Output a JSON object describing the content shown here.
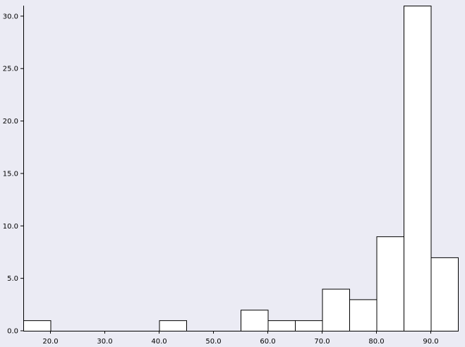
{
  "chart_data": {
    "type": "bar",
    "title": "",
    "xlabel": "",
    "ylabel": "",
    "xlim": [
      15,
      95
    ],
    "ylim": [
      0,
      31
    ],
    "grid": false,
    "bin_width": 5,
    "bins": [
      {
        "x0": 15,
        "x1": 20,
        "count": 1
      },
      {
        "x0": 20,
        "x1": 25,
        "count": 0
      },
      {
        "x0": 25,
        "x1": 30,
        "count": 0
      },
      {
        "x0": 30,
        "x1": 35,
        "count": 0
      },
      {
        "x0": 35,
        "x1": 40,
        "count": 0
      },
      {
        "x0": 40,
        "x1": 45,
        "count": 1
      },
      {
        "x0": 45,
        "x1": 50,
        "count": 0
      },
      {
        "x0": 50,
        "x1": 55,
        "count": 0
      },
      {
        "x0": 55,
        "x1": 60,
        "count": 2
      },
      {
        "x0": 60,
        "x1": 65,
        "count": 1
      },
      {
        "x0": 65,
        "x1": 70,
        "count": 1
      },
      {
        "x0": 70,
        "x1": 75,
        "count": 4
      },
      {
        "x0": 75,
        "x1": 80,
        "count": 3
      },
      {
        "x0": 80,
        "x1": 85,
        "count": 9
      },
      {
        "x0": 85,
        "x1": 90,
        "count": 31
      },
      {
        "x0": 90,
        "x1": 95,
        "count": 7
      }
    ],
    "x_ticks": [
      {
        "value": 20,
        "label": "20.0"
      },
      {
        "value": 30,
        "label": "30.0"
      },
      {
        "value": 40,
        "label": "40.0"
      },
      {
        "value": 50,
        "label": "50.0"
      },
      {
        "value": 60,
        "label": "60.0"
      },
      {
        "value": 70,
        "label": "70.0"
      },
      {
        "value": 80,
        "label": "80.0"
      },
      {
        "value": 90,
        "label": "90.0"
      }
    ],
    "y_ticks": [
      {
        "value": 0,
        "label": "0.0"
      },
      {
        "value": 5,
        "label": "5.0"
      },
      {
        "value": 10,
        "label": "10.0"
      },
      {
        "value": 15,
        "label": "15.0"
      },
      {
        "value": 20,
        "label": "20.0"
      },
      {
        "value": 25,
        "label": "25.0"
      },
      {
        "value": 30,
        "label": "30.0"
      }
    ]
  }
}
